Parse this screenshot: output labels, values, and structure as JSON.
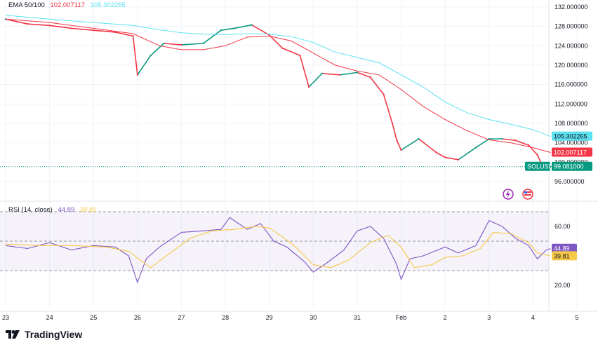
{
  "ema_legend": {
    "label": "EMA 50/100",
    "ema50": "102.007117",
    "ema100": "105.302265"
  },
  "rsi_legend": {
    "label": "RSI (14, close)",
    "rsi": "44.89",
    "rsi_ma": "39.81"
  },
  "brand": "TradingView",
  "colors": {
    "up": "#089981",
    "down": "#f23645",
    "ema50": "#f23645",
    "ema100": "#5ce1f0",
    "rsi": "#7e57c2",
    "rsi_ma": "#f7c948",
    "last_price": "#089981",
    "grid": "#f0f3fa"
  },
  "chart_data": [
    {
      "type": "line",
      "title": "",
      "series": [
        {
          "name": "SOLUSD",
          "role": "price",
          "x": [
            23,
            23.5,
            24,
            24.5,
            25,
            25.5,
            25.9,
            26,
            26.3,
            26.6,
            27,
            27.5,
            27.9,
            28.2,
            28.6,
            29,
            29.3,
            29.7,
            29.9,
            30.2,
            30.6,
            31,
            31.3,
            31.6,
            31.8,
            31.9,
            32,
            32.4,
            32.8,
            33,
            33.3,
            33.7,
            34,
            34.3,
            34.6,
            34.9,
            35.1,
            35.25,
            35.4
          ],
          "y": [
            129.5,
            128.5,
            128.2,
            127.6,
            127.2,
            126.8,
            126.0,
            118.0,
            122.0,
            124.5,
            124.2,
            124.5,
            127.2,
            127.6,
            128.3,
            126.2,
            123.5,
            122.0,
            115.5,
            118.3,
            118.0,
            118.5,
            117.5,
            114.0,
            108.0,
            104.5,
            102.5,
            104.8,
            102.0,
            101.0,
            100.5,
            103.0,
            104.8,
            104.8,
            104.5,
            103.5,
            101.5,
            98.5,
            99.08
          ]
        },
        {
          "name": "EMA 50",
          "role": "ema50",
          "x": [
            23,
            24,
            25,
            25.9,
            26.5,
            27,
            27.5,
            28,
            28.5,
            29,
            29.5,
            30,
            30.5,
            31,
            31.5,
            32,
            32.5,
            33,
            33.5,
            34,
            34.5,
            35,
            35.4
          ],
          "y": [
            129.5,
            128.8,
            127.6,
            126.5,
            124.0,
            123.2,
            123.2,
            124.0,
            125.8,
            126.0,
            125.0,
            122.5,
            120.0,
            118.8,
            118.0,
            115.0,
            111.5,
            108.8,
            106.5,
            104.6,
            104.0,
            103.0,
            102.0
          ]
        },
        {
          "name": "EMA 100",
          "role": "ema100",
          "x": [
            23,
            24,
            25,
            25.9,
            26.5,
            27,
            27.5,
            28,
            28.5,
            29,
            29.5,
            30,
            30.5,
            31,
            31.5,
            32,
            32.5,
            33,
            33.5,
            34,
            34.5,
            35,
            35.4
          ],
          "y": [
            130.3,
            129.5,
            128.8,
            128.2,
            127.3,
            126.7,
            126.4,
            126.3,
            126.5,
            126.4,
            125.9,
            124.7,
            122.7,
            121.6,
            120.5,
            118.0,
            115.5,
            112.4,
            110.2,
            108.8,
            107.8,
            106.7,
            105.3
          ]
        }
      ],
      "price_axis_ticks": [
        "132.000000",
        "128.000000",
        "124.000000",
        "120.000000",
        "116.000000",
        "112.000000",
        "108.000000",
        "104.000000",
        "100.000000",
        "96.000000"
      ],
      "last_price": {
        "symbol": "SOLUSD",
        "value": "99.081000"
      },
      "ema_tags": {
        "ema100": "105.302265",
        "ema50": "102.007117"
      },
      "ylim": [
        94,
        134
      ],
      "x_ticks": [
        "23",
        "24",
        "25",
        "26",
        "27",
        "28",
        "29",
        "30",
        "31",
        "Feb",
        "2",
        "3",
        "4",
        "5"
      ],
      "grid": true
    },
    {
      "type": "line",
      "title": "RSI (14, close)",
      "series": [
        {
          "name": "RSI",
          "role": "rsi",
          "x": [
            23,
            23.5,
            24,
            24.5,
            25,
            25.5,
            25.8,
            26,
            26.2,
            26.5,
            27,
            27.5,
            27.9,
            28.1,
            28.5,
            28.8,
            29.1,
            29.4,
            29.8,
            30,
            30.3,
            30.7,
            31,
            31.3,
            31.6,
            31.9,
            32,
            32.2,
            32.5,
            33,
            33.3,
            33.7,
            34,
            34.3,
            34.6,
            34.9,
            35.1,
            35.3,
            35.4
          ],
          "y": [
            47,
            45,
            49,
            44,
            47,
            46,
            40,
            22,
            38,
            46,
            56,
            57,
            58,
            66,
            58,
            62,
            50,
            46,
            36,
            29,
            35,
            44,
            57,
            60,
            52,
            34,
            24,
            38,
            40,
            46,
            42,
            47,
            64,
            60,
            52,
            47,
            38,
            44,
            44.89
          ]
        },
        {
          "name": "RSI MA",
          "role": "rsi_ma",
          "x": [
            23,
            23.8,
            24.5,
            25.3,
            25.8,
            26.3,
            26.7,
            27.2,
            27.7,
            28.2,
            28.7,
            29,
            29.3,
            29.6,
            30,
            30.4,
            30.8,
            31.3,
            31.7,
            32,
            32.3,
            32.7,
            33,
            33.4,
            33.8,
            34.1,
            34.5,
            34.9,
            35.1,
            35.4
          ],
          "y": [
            48,
            47,
            47,
            46,
            43,
            32,
            41,
            52,
            57,
            58,
            60,
            59,
            53,
            46,
            34,
            32,
            37,
            49,
            54,
            46,
            32,
            34,
            39,
            40,
            45,
            56,
            55,
            49,
            42,
            39.81
          ]
        }
      ],
      "bands": {
        "upper": 70,
        "middle": 50,
        "lower": 30
      },
      "y_ticks": [
        "60.00",
        "20.00"
      ],
      "value_tags": [
        "44.89",
        "39.81"
      ],
      "ylim": [
        10,
        80
      ]
    }
  ]
}
